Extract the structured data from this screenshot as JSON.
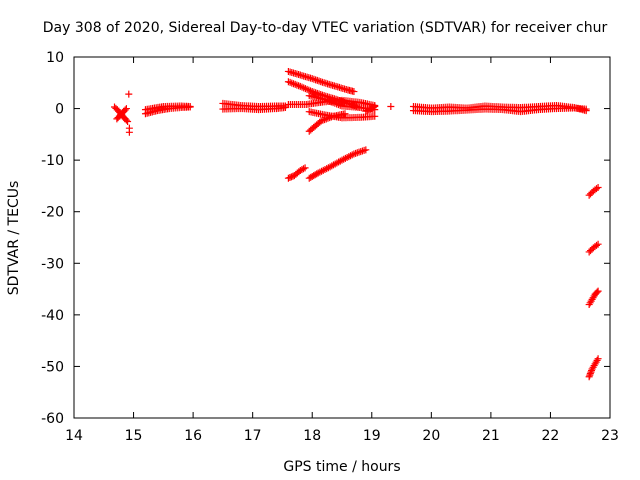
{
  "chart_data": {
    "type": "scatter",
    "title": "Day 308 of 2020, Sidereal Day-to-day VTEC variation (SDTVAR) for receiver chur",
    "xlabel": "GPS time / hours",
    "ylabel": "SDTVAR / TECUs",
    "xlim": [
      14,
      23
    ],
    "ylim": [
      -60,
      10
    ],
    "xticks": [
      "14",
      "15",
      "16",
      "17",
      "18",
      "19",
      "20",
      "21",
      "22",
      "23"
    ],
    "yticks": [
      "10",
      "0",
      "-10",
      "-20",
      "-30",
      "-40",
      "-50",
      "-60"
    ],
    "grid": false,
    "legend": "none",
    "marker": "plus",
    "color": "#ff0000",
    "series": [
      {
        "segments": [
          [
            [
              14.68,
              0.3
            ],
            [
              14.75,
              -0.5
            ],
            [
              14.82,
              -1.5
            ],
            [
              14.9,
              -2.5
            ]
          ],
          [
            [
              14.72,
              -2.0
            ],
            [
              14.8,
              -1.0
            ],
            [
              14.88,
              0.0
            ]
          ],
          [
            [
              14.92,
              2.8
            ]
          ],
          [
            [
              14.93,
              -3.8
            ]
          ],
          [
            [
              14.93,
              -4.6
            ]
          ],
          [
            [
              15.2,
              -1.0
            ],
            [
              15.4,
              -0.4
            ],
            [
              15.6,
              0.0
            ],
            [
              15.8,
              0.2
            ],
            [
              15.95,
              0.3
            ]
          ],
          [
            [
              15.2,
              -0.2
            ],
            [
              15.5,
              0.4
            ],
            [
              15.8,
              0.5
            ],
            [
              15.95,
              0.4
            ]
          ],
          [
            [
              16.5,
              1.0
            ],
            [
              16.8,
              0.6
            ],
            [
              17.1,
              0.4
            ],
            [
              17.4,
              0.5
            ],
            [
              17.55,
              0.5
            ]
          ],
          [
            [
              16.5,
              -0.1
            ],
            [
              16.8,
              0.0
            ],
            [
              17.1,
              -0.2
            ],
            [
              17.4,
              0.0
            ],
            [
              17.55,
              0.2
            ]
          ],
          [
            [
              17.6,
              7.2
            ],
            [
              17.8,
              6.5
            ],
            [
              18.0,
              5.8
            ],
            [
              18.2,
              5.0
            ],
            [
              18.4,
              4.3
            ],
            [
              18.6,
              3.6
            ],
            [
              18.7,
              3.3
            ]
          ],
          [
            [
              17.6,
              5.2
            ],
            [
              17.8,
              4.3
            ],
            [
              18.0,
              3.3
            ],
            [
              18.2,
              2.5
            ],
            [
              18.4,
              1.8
            ],
            [
              18.6,
              1.0
            ],
            [
              18.8,
              0.2
            ]
          ],
          [
            [
              17.6,
              0.8
            ],
            [
              17.9,
              0.8
            ],
            [
              18.2,
              1.3
            ],
            [
              18.5,
              1.6
            ],
            [
              18.8,
              1.2
            ],
            [
              19.05,
              0.6
            ]
          ],
          [
            [
              17.95,
              2.5
            ],
            [
              18.2,
              1.8
            ],
            [
              18.5,
              0.5
            ],
            [
              18.8,
              0.2
            ],
            [
              19.05,
              -0.2
            ]
          ],
          [
            [
              17.95,
              -0.6
            ],
            [
              18.2,
              -1.2
            ],
            [
              18.5,
              -1.8
            ],
            [
              18.8,
              -1.7
            ],
            [
              19.05,
              -1.5
            ]
          ],
          [
            [
              17.95,
              -4.4
            ],
            [
              18.15,
              -2.4
            ],
            [
              18.35,
              -1.5
            ],
            [
              18.55,
              -1.0
            ]
          ],
          [
            [
              18.9,
              -0.5
            ],
            [
              19.0,
              0.0
            ],
            [
              19.05,
              0.4
            ]
          ],
          [
            [
              19.32,
              0.4
            ]
          ],
          [
            [
              17.6,
              -13.5
            ],
            [
              17.7,
              -13.0
            ],
            [
              17.8,
              -12.0
            ],
            [
              17.88,
              -11.5
            ]
          ],
          [
            [
              17.95,
              -13.5
            ],
            [
              18.1,
              -12.5
            ],
            [
              18.3,
              -11.3
            ],
            [
              18.5,
              -10.0
            ],
            [
              18.7,
              -8.8
            ],
            [
              18.9,
              -8.0
            ]
          ],
          [
            [
              19.7,
              0.4
            ],
            [
              20.0,
              0.1
            ],
            [
              20.3,
              0.3
            ],
            [
              20.6,
              0.1
            ],
            [
              20.9,
              0.5
            ],
            [
              21.2,
              0.3
            ],
            [
              21.5,
              0.2
            ],
            [
              21.8,
              0.4
            ],
            [
              22.1,
              0.6
            ],
            [
              22.4,
              0.2
            ],
            [
              22.6,
              -0.4
            ]
          ],
          [
            [
              19.7,
              -0.4
            ],
            [
              20.0,
              -0.6
            ],
            [
              20.3,
              -0.5
            ],
            [
              20.6,
              -0.3
            ],
            [
              20.9,
              -0.1
            ],
            [
              21.2,
              -0.2
            ],
            [
              21.5,
              -0.6
            ],
            [
              21.8,
              -0.2
            ],
            [
              22.1,
              0.0
            ],
            [
              22.4,
              0.1
            ],
            [
              22.6,
              -0.1
            ]
          ],
          [
            [
              22.65,
              -16.8
            ],
            [
              22.72,
              -16.0
            ],
            [
              22.8,
              -15.3
            ]
          ],
          [
            [
              22.65,
              -27.8
            ],
            [
              22.72,
              -27.0
            ],
            [
              22.8,
              -26.3
            ]
          ],
          [
            [
              22.65,
              -38.0
            ],
            [
              22.7,
              -37.0
            ],
            [
              22.75,
              -36.0
            ],
            [
              22.8,
              -35.4
            ]
          ],
          [
            [
              22.65,
              -52.0
            ],
            [
              22.7,
              -50.5
            ],
            [
              22.75,
              -49.5
            ],
            [
              22.8,
              -48.5
            ]
          ]
        ]
      }
    ]
  }
}
